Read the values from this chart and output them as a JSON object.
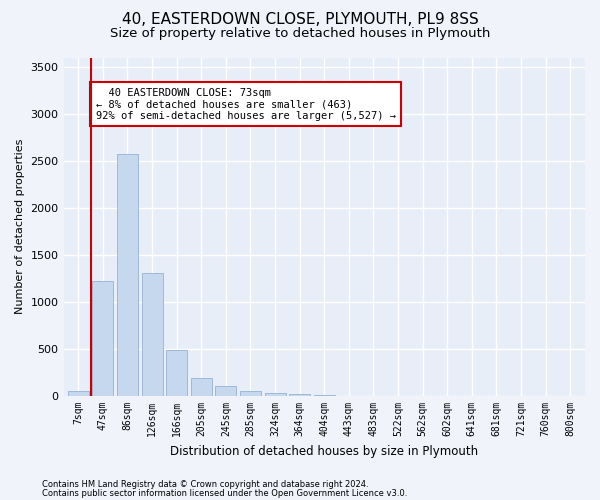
{
  "title1": "40, EASTERDOWN CLOSE, PLYMOUTH, PL9 8SS",
  "title2": "Size of property relative to detached houses in Plymouth",
  "xlabel": "Distribution of detached houses by size in Plymouth",
  "ylabel": "Number of detached properties",
  "categories": [
    "7sqm",
    "47sqm",
    "86sqm",
    "126sqm",
    "166sqm",
    "205sqm",
    "245sqm",
    "285sqm",
    "324sqm",
    "364sqm",
    "404sqm",
    "443sqm",
    "483sqm",
    "522sqm",
    "562sqm",
    "602sqm",
    "641sqm",
    "681sqm",
    "721sqm",
    "760sqm",
    "800sqm"
  ],
  "values": [
    50,
    1220,
    2570,
    1310,
    490,
    190,
    110,
    55,
    35,
    20,
    10,
    5,
    5,
    0,
    0,
    0,
    0,
    0,
    0,
    0,
    0
  ],
  "bar_color": "#c5d8ed",
  "bar_edge_color": "#a0b8d8",
  "vline_x": 0.5,
  "vline_color": "#cc0000",
  "annotation_text": "  40 EASTERDOWN CLOSE: 73sqm\n← 8% of detached houses are smaller (463)\n92% of semi-detached houses are larger (5,527) →",
  "annotation_box_color": "#ffffff",
  "annotation_box_edge": "#cc0000",
  "ylim": [
    0,
    3600
  ],
  "yticks": [
    0,
    500,
    1000,
    1500,
    2000,
    2500,
    3000,
    3500
  ],
  "footer1": "Contains HM Land Registry data © Crown copyright and database right 2024.",
  "footer2": "Contains public sector information licensed under the Open Government Licence v3.0.",
  "bg_color": "#f0f4fa",
  "plot_bg_color": "#e8eef8",
  "grid_color": "#ffffff",
  "title1_fontsize": 11,
  "title2_fontsize": 9.5
}
